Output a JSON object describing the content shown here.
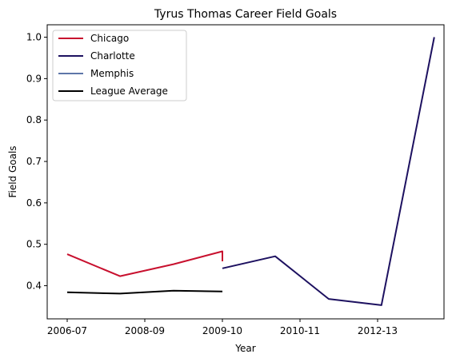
{
  "chart_data": {
    "type": "line",
    "title": "Tyrus Thomas Career Field Goals",
    "xlabel": "Year",
    "ylabel": "Field Goals",
    "x_tick_labels": [
      "2006-07",
      "2008-09",
      "2009-10",
      "2010-11",
      "2012-13"
    ],
    "x_tick_positions": [
      0,
      1,
      2,
      3,
      4
    ],
    "ylim": [
      0.32,
      1.03
    ],
    "xlim": [
      -0.14,
      4.5
    ],
    "y_ticks": [
      0.4,
      0.5,
      0.6,
      0.7,
      0.8,
      0.9,
      1.0
    ],
    "y_tick_labels": [
      "0.4",
      "0.5",
      "0.6",
      "0.7",
      "0.8",
      "0.9",
      "1.0"
    ],
    "legend_position": "upper-left",
    "grid": false,
    "series": [
      {
        "name": "Chicago",
        "color": "#c8102e",
        "points": [
          [
            0,
            0.476
          ],
          [
            0.68,
            0.423
          ],
          [
            1.37,
            0.452
          ],
          [
            2.0,
            0.483
          ],
          [
            2.0,
            0.459
          ]
        ]
      },
      {
        "name": "Charlotte",
        "color": "#1d1160",
        "points": [
          [
            2.0,
            0.442
          ],
          [
            2.68,
            0.471
          ],
          [
            3.37,
            0.368
          ],
          [
            4.05,
            0.353
          ],
          [
            4.73,
            1.0
          ]
        ]
      },
      {
        "name": "Memphis",
        "color": "#5d76a9",
        "points": []
      },
      {
        "name": "League Average",
        "color": "#000000",
        "points": [
          [
            0,
            0.384
          ],
          [
            0.68,
            0.381
          ],
          [
            1.37,
            0.388
          ],
          [
            2.0,
            0.386
          ]
        ]
      }
    ]
  }
}
